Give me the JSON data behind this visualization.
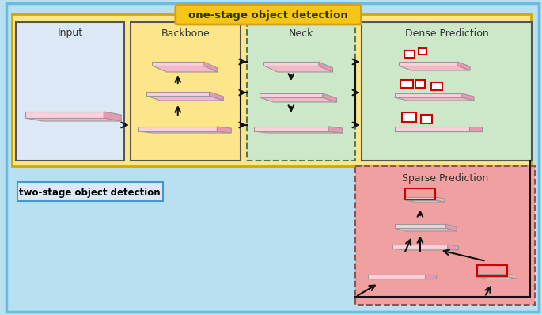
{
  "bg_outer": "#b8e0f0",
  "bg_one_stage": "#fde68a",
  "bg_input": "#dce8f5",
  "bg_neck": "#cde8c8",
  "bg_dense": "#cde8c8",
  "bg_sparse": "#f0a0a0",
  "title_one_stage": "one-stage object detection",
  "title_two_stage": "two-stage object detection",
  "label_input": "Input",
  "label_backbone": "Backbone",
  "label_neck": "Neck",
  "label_dense": "Dense Prediction",
  "label_sparse": "Sparse Prediction",
  "pink_face": "#f5b8c8",
  "pink_top": "#fad0da",
  "pink_side": "#e898b0",
  "white_face": "#ffffff",
  "red_stroke": "#cc0000",
  "arrow_color": "#111111",
  "one_stage_title_bg": "#f5c518",
  "one_stage_title_border": "#d4a017"
}
